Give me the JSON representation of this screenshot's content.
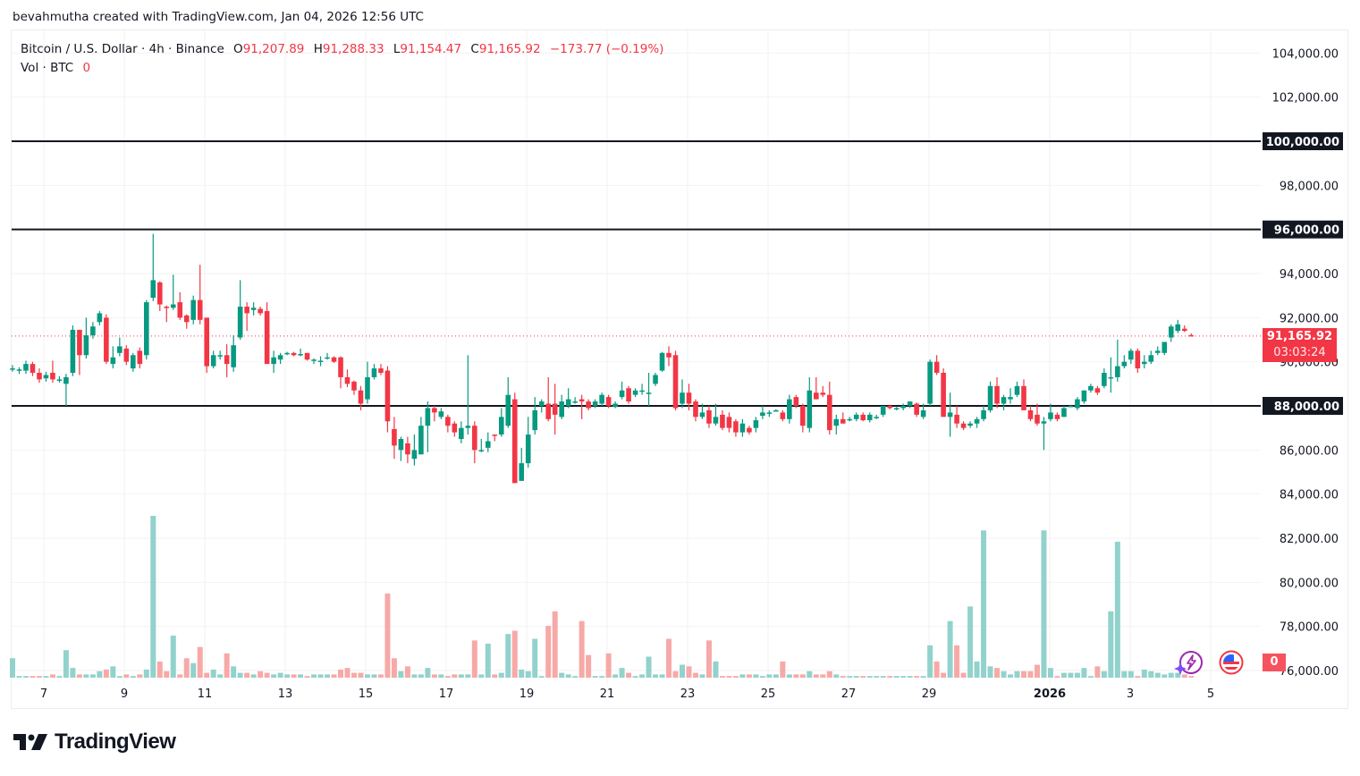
{
  "caption": "bevahmutha created with TradingView.com, Jan 04, 2026 12:56 UTC",
  "legend": {
    "symbol": "Bitcoin / U.S. Dollar · 4h · Binance",
    "open_label": "O",
    "open": "91,207.89",
    "high_label": "H",
    "high": "91,288.33",
    "low_label": "L",
    "low": "91,154.47",
    "close_label": "C",
    "close": "91,165.92",
    "change": "−173.77 (−0.19%)",
    "vol_label": "Vol · BTC",
    "vol_value": "0"
  },
  "current_price": {
    "price": "91,165.92",
    "countdown": "03:03:24",
    "value": 91165.92
  },
  "volume_badge": "0",
  "horizontal_lines": [
    {
      "value": 100000,
      "label": "100,000.00"
    },
    {
      "value": 96000,
      "label": "96,000.00"
    },
    {
      "value": 88000,
      "label": "88,000.00"
    }
  ],
  "icons": {
    "assistant": "lightning-sparkle-icon",
    "economic_calendar": "us-flag-icon"
  },
  "footer": {
    "logo_text": "TradingView"
  },
  "colors": {
    "up": "#089981",
    "down": "#f23645",
    "up_volume": "#92d2cc",
    "down_volume": "#f7a9a7",
    "line": "#131722",
    "price_tag": "#f23645"
  },
  "chart_data": {
    "type": "candlestick",
    "title": "Bitcoin / U.S. Dollar · 4h · Binance",
    "interval": "4h",
    "ylim": [
      75000,
      105000
    ],
    "y_ticks": [
      {
        "value": 104000,
        "label": "104,000.00"
      },
      {
        "value": 102000,
        "label": "102,000.00"
      },
      {
        "value": 98000,
        "label": "98,000.00"
      },
      {
        "value": 94000,
        "label": "94,000.00"
      },
      {
        "value": 92000,
        "label": "92,000.00"
      },
      {
        "value": 90000,
        "label": "90,000.00"
      },
      {
        "value": 86000,
        "label": "86,000.00"
      },
      {
        "value": 84000,
        "label": "84,000.00"
      },
      {
        "value": 82000,
        "label": "82,000.00"
      },
      {
        "value": 80000,
        "label": "80,000.00"
      },
      {
        "value": 78000,
        "label": "78,000.00"
      },
      {
        "value": 76000,
        "label": "76,000.00"
      }
    ],
    "x_ticks": [
      {
        "day": 7,
        "label": "7"
      },
      {
        "day": 9,
        "label": "9"
      },
      {
        "day": 11,
        "label": "11"
      },
      {
        "day": 13,
        "label": "13"
      },
      {
        "day": 15,
        "label": "15"
      },
      {
        "day": 17,
        "label": "17"
      },
      {
        "day": 19,
        "label": "19"
      },
      {
        "day": 21,
        "label": "21"
      },
      {
        "day": 23,
        "label": "23"
      },
      {
        "day": 25,
        "label": "25"
      },
      {
        "day": 27,
        "label": "27"
      },
      {
        "day": 29,
        "label": "29"
      },
      {
        "day": 32,
        "label": "2026",
        "bold": true
      },
      {
        "day": 34,
        "label": "3"
      },
      {
        "day": 36,
        "label": "5"
      }
    ],
    "grid": true,
    "volume_units": "relative (tallest bar = 100)",
    "candle_fields": [
      "open",
      "high",
      "low",
      "close",
      "volume"
    ],
    "candles": [
      [
        89700,
        89850,
        89550,
        89700,
        12
      ],
      [
        89600,
        89750,
        89450,
        89650,
        1
      ],
      [
        89600,
        90050,
        89450,
        89900,
        1
      ],
      [
        89900,
        90000,
        89350,
        89500,
        1
      ],
      [
        89500,
        89700,
        89050,
        89200,
        1
      ],
      [
        89250,
        89550,
        89100,
        89400,
        1
      ],
      [
        89500,
        90050,
        89050,
        89200,
        2
      ],
      [
        89200,
        89350,
        89050,
        89200,
        1
      ],
      [
        89000,
        89450,
        88000,
        89300,
        17
      ],
      [
        89500,
        91650,
        89350,
        91450,
        6
      ],
      [
        91450,
        91450,
        89400,
        90300,
        2
      ],
      [
        90300,
        92000,
        90150,
        91200,
        2
      ],
      [
        91200,
        91800,
        91050,
        91600,
        2
      ],
      [
        91800,
        92300,
        91650,
        92200,
        4
      ],
      [
        92000,
        92150,
        89900,
        90000,
        5
      ],
      [
        89900,
        90700,
        89700,
        90200,
        7
      ],
      [
        90400,
        91100,
        90250,
        90700,
        1
      ],
      [
        90600,
        90750,
        89850,
        90000,
        2
      ],
      [
        89700,
        90400,
        89550,
        90300,
        1
      ],
      [
        90500,
        90650,
        89700,
        89900,
        2
      ],
      [
        90300,
        92800,
        90100,
        92700,
        5
      ],
      [
        92900,
        95800,
        92750,
        93700,
        100
      ],
      [
        93600,
        93650,
        92300,
        92600,
        10
      ],
      [
        92500,
        92550,
        91800,
        92450,
        4
      ],
      [
        92450,
        93950,
        92350,
        92600,
        26
      ],
      [
        92700,
        93150,
        91900,
        92000,
        2
      ],
      [
        92100,
        92150,
        91500,
        91800,
        12
      ],
      [
        91900,
        93000,
        91700,
        92800,
        9
      ],
      [
        92800,
        94400,
        91700,
        91900,
        19
      ],
      [
        92000,
        92000,
        89500,
        89800,
        3
      ],
      [
        89800,
        90500,
        89700,
        90300,
        5
      ],
      [
        90300,
        90500,
        90100,
        90300,
        2
      ],
      [
        90300,
        90800,
        89300,
        89900,
        15
      ],
      [
        89750,
        91200,
        89550,
        90750,
        7
      ],
      [
        91100,
        93700,
        91000,
        92500,
        3
      ],
      [
        92500,
        92700,
        91400,
        92200,
        3
      ],
      [
        92350,
        92700,
        92100,
        92450,
        2
      ],
      [
        92400,
        92500,
        92100,
        92200,
        4
      ],
      [
        92300,
        92700,
        89900,
        89900,
        3
      ],
      [
        89900,
        90500,
        89500,
        90200,
        2
      ],
      [
        90100,
        90400,
        89900,
        90300,
        3
      ],
      [
        90400,
        90450,
        90300,
        90400,
        2
      ],
      [
        90400,
        90450,
        90250,
        90300,
        2
      ],
      [
        90300,
        90600,
        90250,
        90350,
        2
      ],
      [
        90400,
        90400,
        90050,
        90100,
        1
      ],
      [
        90100,
        90150,
        89900,
        90100,
        2
      ],
      [
        90050,
        90250,
        89800,
        90050,
        2
      ],
      [
        90150,
        90400,
        90100,
        90200,
        2
      ],
      [
        90200,
        90250,
        89950,
        90000,
        2
      ],
      [
        90200,
        90250,
        88800,
        89300,
        5
      ],
      [
        89300,
        89650,
        88850,
        89000,
        6
      ],
      [
        89100,
        89150,
        88500,
        88700,
        3
      ],
      [
        88700,
        88900,
        87800,
        88100,
        3
      ],
      [
        88300,
        90000,
        88100,
        89300,
        2
      ],
      [
        89300,
        89900,
        89200,
        89700,
        2
      ],
      [
        89700,
        89900,
        89400,
        89500,
        2
      ],
      [
        89600,
        89800,
        86800,
        87300,
        52
      ],
      [
        86950,
        87500,
        85600,
        86200,
        12
      ],
      [
        86000,
        86600,
        85500,
        86500,
        4
      ],
      [
        86300,
        86600,
        85400,
        85800,
        7
      ],
      [
        85600,
        86700,
        85300,
        86000,
        2
      ],
      [
        85800,
        87500,
        85800,
        87100,
        2
      ],
      [
        87100,
        88200,
        85900,
        87900,
        6
      ],
      [
        87900,
        88000,
        87300,
        87700,
        2
      ],
      [
        87500,
        87900,
        87400,
        87750,
        2
      ],
      [
        87500,
        87600,
        86800,
        87100,
        1
      ],
      [
        87200,
        87300,
        86600,
        86800,
        2
      ],
      [
        86500,
        87300,
        86300,
        87000,
        2
      ],
      [
        87000,
        90300,
        86700,
        87100,
        2
      ],
      [
        87100,
        87300,
        85400,
        86000,
        23
      ],
      [
        86000,
        86500,
        85900,
        86000,
        2
      ],
      [
        86100,
        86800,
        85900,
        86400,
        21
      ],
      [
        86700,
        86700,
        86400,
        86650,
        2
      ],
      [
        86700,
        87900,
        86600,
        87500,
        3
      ],
      [
        87100,
        89300,
        87000,
        88500,
        27
      ],
      [
        88300,
        88600,
        84500,
        84500,
        29
      ],
      [
        84600,
        86100,
        84600,
        85400,
        5
      ],
      [
        85400,
        87500,
        85200,
        86700,
        4
      ],
      [
        86900,
        88400,
        86700,
        87800,
        24
      ],
      [
        88000,
        88300,
        87700,
        88200,
        1
      ],
      [
        88100,
        89300,
        87300,
        87400,
        32
      ],
      [
        88100,
        89000,
        86700,
        87600,
        41
      ],
      [
        87500,
        88500,
        87400,
        88200,
        3
      ],
      [
        88000,
        88800,
        87900,
        88300,
        2
      ],
      [
        88200,
        88400,
        88100,
        88200,
        1
      ],
      [
        88300,
        88500,
        87400,
        88200,
        35
      ],
      [
        88200,
        88300,
        87800,
        87900,
        14
      ],
      [
        88000,
        88300,
        87900,
        88200,
        1
      ],
      [
        88100,
        88600,
        88000,
        88500,
        1
      ],
      [
        88400,
        88500,
        87900,
        88000,
        15
      ],
      [
        87950,
        88200,
        87900,
        88100,
        2
      ],
      [
        88400,
        89100,
        88300,
        88700,
        6
      ],
      [
        88800,
        88900,
        88100,
        88200,
        3
      ],
      [
        88500,
        88800,
        88400,
        88700,
        1
      ],
      [
        88700,
        89000,
        88500,
        88700,
        2
      ],
      [
        88600,
        89500,
        88000,
        88600,
        13
      ],
      [
        89000,
        89500,
        88900,
        89400,
        2
      ],
      [
        89600,
        90450,
        89550,
        90400,
        2
      ],
      [
        90400,
        90700,
        89800,
        90200,
        24
      ],
      [
        90300,
        90500,
        87800,
        87900,
        4
      ],
      [
        88100,
        89200,
        87900,
        88600,
        8
      ],
      [
        88600,
        89000,
        87800,
        88100,
        7
      ],
      [
        88200,
        88300,
        87300,
        87500,
        3
      ],
      [
        87500,
        88100,
        87400,
        87700,
        2
      ],
      [
        87800,
        88000,
        87000,
        87200,
        23
      ],
      [
        87200,
        88100,
        87100,
        87500,
        10
      ],
      [
        87600,
        87800,
        86900,
        87000,
        1
      ],
      [
        87500,
        87700,
        86800,
        87000,
        1
      ],
      [
        87300,
        87400,
        86600,
        86800,
        1
      ],
      [
        86800,
        87400,
        86600,
        87200,
        2
      ],
      [
        87000,
        87100,
        86700,
        86800,
        2
      ],
      [
        87000,
        87500,
        86800,
        87350,
        2
      ],
      [
        87550,
        88000,
        87400,
        87700,
        1
      ],
      [
        87700,
        87800,
        87500,
        87700,
        2
      ],
      [
        87800,
        87850,
        87750,
        87800,
        2
      ],
      [
        87700,
        87800,
        87300,
        87400,
        10
      ],
      [
        87400,
        88500,
        87200,
        88300,
        2
      ],
      [
        88400,
        88500,
        87900,
        88000,
        2
      ],
      [
        88000,
        88100,
        86800,
        87100,
        2
      ],
      [
        87000,
        89300,
        86800,
        88700,
        4
      ],
      [
        88600,
        89300,
        88300,
        88300,
        2
      ],
      [
        88600,
        88900,
        88400,
        88500,
        2
      ],
      [
        88500,
        89100,
        86700,
        86900,
        4
      ],
      [
        87100,
        87600,
        86700,
        87400,
        2
      ],
      [
        87400,
        87700,
        87200,
        87200,
        1
      ],
      [
        87400,
        87500,
        87300,
        87400,
        1
      ],
      [
        87400,
        87700,
        87300,
        87600,
        1
      ],
      [
        87600,
        87700,
        87300,
        87350,
        1
      ],
      [
        87350,
        87700,
        87250,
        87600,
        1
      ],
      [
        87500,
        87600,
        87400,
        87500,
        1
      ],
      [
        87600,
        88000,
        87500,
        88000,
        1
      ],
      [
        88000,
        88050,
        87850,
        87900,
        1
      ],
      [
        87900,
        87950,
        87800,
        87900,
        1
      ],
      [
        87900,
        88100,
        87800,
        88000,
        1
      ],
      [
        88000,
        88200,
        87900,
        88200,
        1
      ],
      [
        88100,
        88150,
        87500,
        87600,
        1
      ],
      [
        87500,
        88100,
        87400,
        87800,
        1
      ],
      [
        88100,
        90100,
        88000,
        90000,
        20
      ],
      [
        90000,
        90300,
        89400,
        89500,
        10
      ],
      [
        89500,
        89700,
        87500,
        87500,
        3
      ],
      [
        87500,
        88600,
        86600,
        87700,
        35
      ],
      [
        87600,
        88000,
        87000,
        87200,
        20
      ],
      [
        87200,
        87300,
        86900,
        87000,
        3
      ],
      [
        87100,
        87300,
        87000,
        87200,
        44
      ],
      [
        87200,
        87500,
        87000,
        87400,
        10
      ],
      [
        87400,
        88000,
        87300,
        87800,
        91
      ],
      [
        87800,
        89100,
        87700,
        88900,
        7
      ],
      [
        88900,
        89300,
        87900,
        88100,
        6
      ],
      [
        88100,
        88500,
        87800,
        88400,
        4
      ],
      [
        88300,
        88800,
        88100,
        88400,
        2
      ],
      [
        88500,
        89100,
        88400,
        88900,
        4
      ],
      [
        88900,
        89200,
        87800,
        87800,
        4
      ],
      [
        87800,
        88000,
        87300,
        87400,
        4
      ],
      [
        87600,
        88100,
        87100,
        87200,
        8
      ],
      [
        87200,
        87500,
        86000,
        87300,
        91
      ],
      [
        87400,
        88100,
        87300,
        87700,
        6
      ],
      [
        87600,
        87700,
        87300,
        87400,
        1
      ],
      [
        87500,
        88000,
        87500,
        87900,
        3
      ],
      [
        88000,
        88050,
        87950,
        88000,
        3
      ],
      [
        87900,
        88400,
        87800,
        88300,
        3
      ],
      [
        88200,
        88700,
        88100,
        88700,
        6
      ],
      [
        88700,
        89000,
        88600,
        88900,
        1
      ],
      [
        88800,
        88900,
        88500,
        88600,
        7
      ],
      [
        88900,
        89700,
        88800,
        89500,
        4
      ],
      [
        89300,
        90200,
        88600,
        89300,
        41
      ],
      [
        89300,
        91000,
        89100,
        89800,
        84
      ],
      [
        89800,
        90300,
        89700,
        90000,
        4
      ],
      [
        90100,
        90600,
        89900,
        90500,
        4
      ],
      [
        90500,
        90600,
        89500,
        89700,
        1
      ],
      [
        89900,
        90300,
        89700,
        90000,
        5
      ],
      [
        90000,
        90500,
        89900,
        90300,
        4
      ],
      [
        90400,
        90700,
        90300,
        90500,
        3
      ],
      [
        90400,
        90900,
        90300,
        90900,
        2
      ],
      [
        91100,
        91700,
        90900,
        91600,
        3
      ],
      [
        91400,
        91900,
        91300,
        91700,
        3
      ],
      [
        91500,
        91650,
        91350,
        91400,
        2
      ],
      [
        91207.89,
        91288.33,
        91154.47,
        91165.92,
        1
      ]
    ]
  }
}
